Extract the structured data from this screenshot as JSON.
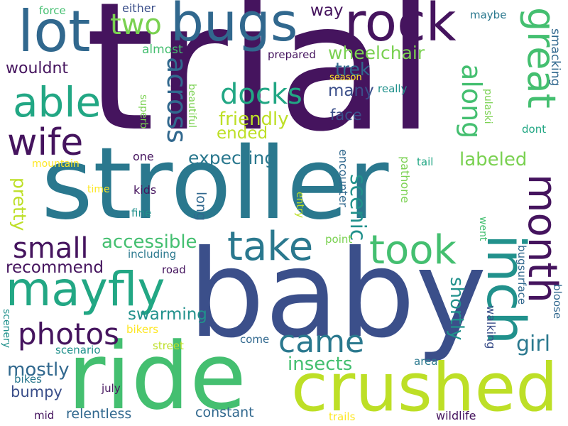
{
  "colors": {
    "deep_purple": "#45145e",
    "indigo": "#3b4f8a",
    "blue": "#31688e",
    "teal_blue": "#2a788e",
    "teal": "#21918c",
    "sea_green": "#22a784",
    "green": "#44bf70",
    "light_green": "#7ad151",
    "lime": "#bddf26",
    "yellow": "#fde725",
    "background": "#ffffff"
  },
  "words": [
    "trial",
    "stroller",
    "baby",
    "ride",
    "crushed",
    "bugs",
    "rock",
    "lot",
    "inch",
    "mayfly",
    "took",
    "month",
    "take",
    "great",
    "able",
    "wife",
    "photos",
    "came",
    "along",
    "across",
    "small",
    "docks",
    "labeled",
    "wheelchair",
    "accessible",
    "scenic",
    "two",
    "insects",
    "mostly",
    "friendly",
    "expecting",
    "recommend",
    "swarming",
    "girl",
    "shortly",
    "pretty",
    "trek",
    "many",
    "ended",
    "wouldnt",
    "way",
    "face",
    "bumpy",
    "constant",
    "relentless",
    "smacking",
    "long",
    "encounter",
    "pathone",
    "almost",
    "walking",
    "bugsurface",
    "bloose",
    "either",
    "force",
    "maybe",
    "prepared",
    "season",
    "really",
    "superb",
    "beautiful",
    "pulaski",
    "dont",
    "one",
    "mountain",
    "tail",
    "time",
    "kids",
    "entry",
    "fine",
    "went",
    "point",
    "including",
    "road",
    "scenery",
    "bikers",
    "street",
    "scenario",
    "come",
    "area",
    "bikes",
    "july",
    "mid",
    "trails",
    "wildlife"
  ]
}
